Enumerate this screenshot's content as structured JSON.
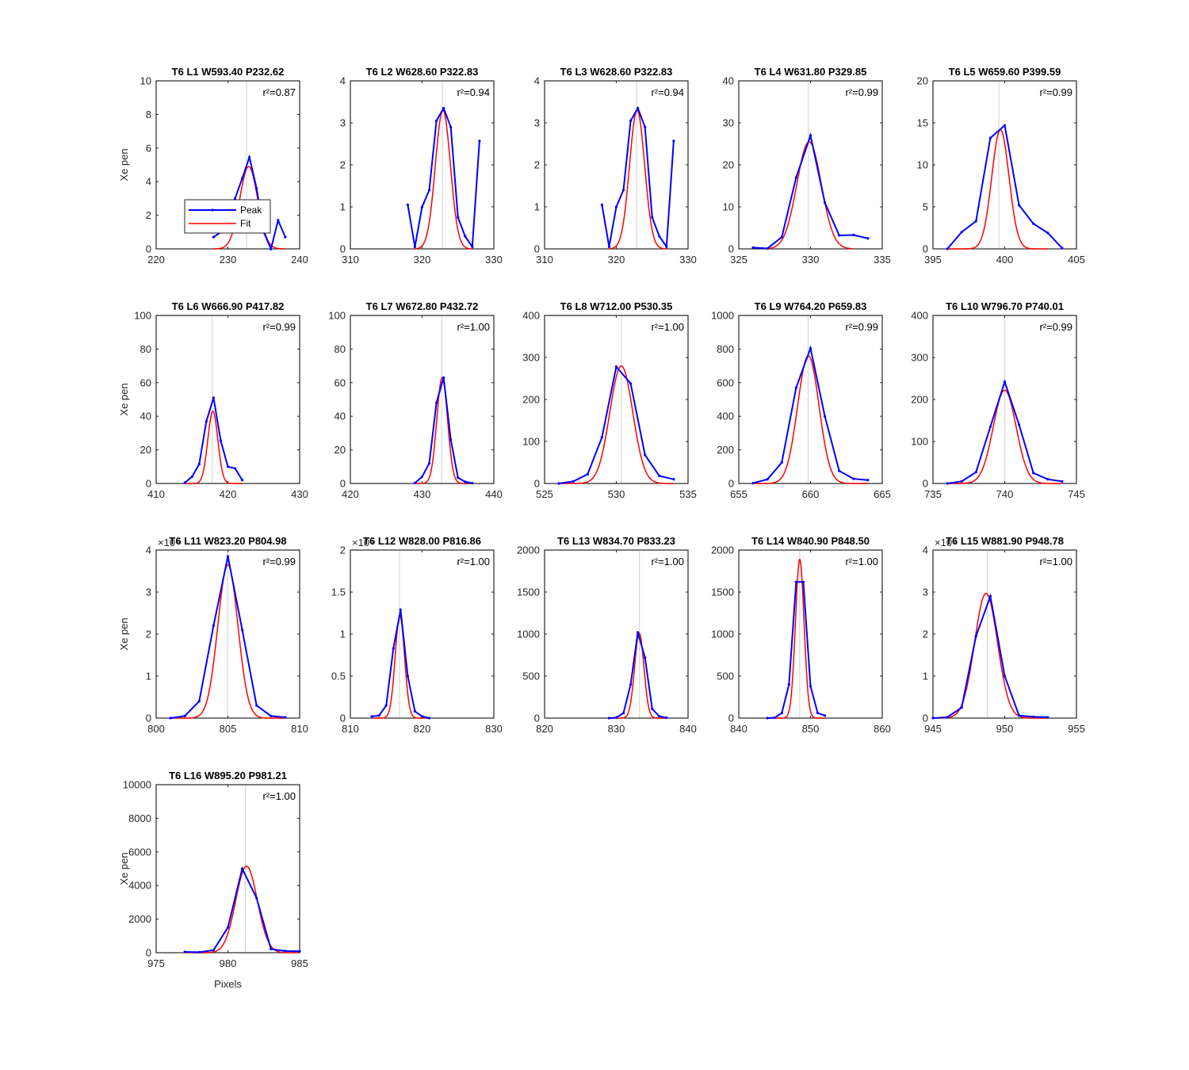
{
  "colors": {
    "peak": "#0000ff",
    "fit": "#ff0000",
    "grid": "#d0d0d0",
    "axis": "#262626"
  },
  "legend": {
    "entries": [
      "Peak",
      "Fit"
    ],
    "panel": 0
  },
  "xlabel_text": "Pixels",
  "chart_data": [
    {
      "type": "line",
      "title": "T6 L1 W593.40 P232.62",
      "ylabel": "Xe pen",
      "xlabel": "",
      "xlim": [
        220,
        240
      ],
      "ylim": [
        0,
        10
      ],
      "xticks": [
        220,
        230,
        240
      ],
      "yticks": [
        0,
        2,
        4,
        6,
        8,
        10
      ],
      "multiplier": "",
      "r2": "r²=0.87",
      "center": 232.62,
      "grid": true,
      "series": [
        {
          "name": "Peak",
          "x": [
            228,
            229,
            230,
            231,
            232,
            233,
            234,
            235,
            236,
            237,
            238
          ],
          "y": [
            0.7,
            1.0,
            2.0,
            3.0,
            4.2,
            5.45,
            3.6,
            1.0,
            0.0,
            1.7,
            0.7
          ]
        },
        {
          "name": "Fit",
          "amp": 4.9,
          "mu": 232.9,
          "sigma": 1.25,
          "from": 228,
          "to": 238
        }
      ]
    },
    {
      "type": "line",
      "title": "T6 L2 W628.60 P322.83",
      "ylabel": "",
      "xlabel": "",
      "xlim": [
        310,
        330
      ],
      "ylim": [
        0,
        4
      ],
      "xticks": [
        310,
        320,
        330
      ],
      "yticks": [
        0,
        1,
        2,
        3,
        4
      ],
      "multiplier": "",
      "r2": "r²=0.94",
      "center": 322.83,
      "grid": true,
      "series": [
        {
          "name": "Peak",
          "x": [
            318,
            319,
            320,
            321,
            322,
            323,
            324,
            325,
            326,
            327,
            328
          ],
          "y": [
            1.05,
            0.05,
            1.0,
            1.4,
            3.05,
            3.35,
            2.9,
            0.75,
            0.3,
            0.05,
            2.57
          ]
        },
        {
          "name": "Fit",
          "amp": 3.3,
          "mu": 322.9,
          "sigma": 1.05,
          "from": 319,
          "to": 327
        }
      ]
    },
    {
      "type": "line",
      "title": "T6 L3 W628.60 P322.83",
      "ylabel": "",
      "xlabel": "",
      "xlim": [
        310,
        330
      ],
      "ylim": [
        0,
        4
      ],
      "xticks": [
        310,
        320,
        330
      ],
      "yticks": [
        0,
        1,
        2,
        3,
        4
      ],
      "multiplier": "",
      "r2": "r²=0.94",
      "center": 322.83,
      "grid": true,
      "series": [
        {
          "name": "Peak",
          "x": [
            318,
            319,
            320,
            321,
            322,
            323,
            324,
            325,
            326,
            327,
            328
          ],
          "y": [
            1.05,
            0.05,
            1.0,
            1.4,
            3.05,
            3.35,
            2.9,
            0.75,
            0.3,
            0.05,
            2.57
          ]
        },
        {
          "name": "Fit",
          "amp": 3.3,
          "mu": 322.9,
          "sigma": 1.05,
          "from": 319,
          "to": 327
        }
      ]
    },
    {
      "type": "line",
      "title": "T6 L4 W631.80 P329.85",
      "ylabel": "",
      "xlabel": "",
      "xlim": [
        325,
        335
      ],
      "ylim": [
        0,
        40
      ],
      "xticks": [
        325,
        330,
        335
      ],
      "yticks": [
        0,
        10,
        20,
        30,
        40
      ],
      "multiplier": "",
      "r2": "r²=0.99",
      "center": 329.85,
      "grid": true,
      "series": [
        {
          "name": "Peak",
          "x": [
            326,
            327,
            328,
            329,
            330,
            331,
            332,
            333,
            334
          ],
          "y": [
            0.3,
            0.1,
            2.8,
            17.0,
            27.0,
            11.0,
            3.2,
            3.3,
            2.5
          ]
        },
        {
          "name": "Fit",
          "amp": 25.5,
          "mu": 329.9,
          "sigma": 0.85,
          "from": 327,
          "to": 333
        }
      ]
    },
    {
      "type": "line",
      "title": "T6 L5 W659.60 P399.59",
      "ylabel": "",
      "xlabel": "",
      "xlim": [
        395,
        405
      ],
      "ylim": [
        0,
        20
      ],
      "xticks": [
        395,
        400,
        405
      ],
      "yticks": [
        0,
        5,
        10,
        15,
        20
      ],
      "multiplier": "",
      "r2": "r²=0.99",
      "center": 399.59,
      "grid": true,
      "series": [
        {
          "name": "Peak",
          "x": [
            396,
            397,
            398,
            399,
            400,
            401,
            402,
            403,
            404
          ],
          "y": [
            0.0,
            2.0,
            3.3,
            13.2,
            14.7,
            5.2,
            3.0,
            1.9,
            0.1
          ]
        },
        {
          "name": "Fit",
          "amp": 14.2,
          "mu": 399.7,
          "sigma": 0.6,
          "from": 396,
          "to": 403
        }
      ]
    },
    {
      "type": "line",
      "title": "T6 L6 W666.90 P417.82",
      "ylabel": "Xe pen",
      "xlabel": "",
      "xlim": [
        410,
        430
      ],
      "ylim": [
        0,
        100
      ],
      "xticks": [
        410,
        420,
        430
      ],
      "yticks": [
        0,
        20,
        40,
        60,
        80,
        100
      ],
      "multiplier": "",
      "r2": "r²=0.99",
      "center": 417.82,
      "grid": true,
      "series": [
        {
          "name": "Peak",
          "x": [
            414,
            415,
            416,
            417,
            418,
            419,
            420,
            421,
            422
          ],
          "y": [
            0.5,
            4.0,
            11.5,
            37.0,
            51.0,
            25.5,
            10.0,
            9.0,
            2.0
          ]
        },
        {
          "name": "Fit",
          "amp": 43.0,
          "mu": 417.9,
          "sigma": 0.7,
          "from": 414,
          "to": 422
        }
      ]
    },
    {
      "type": "line",
      "title": "T6 L7 W672.80 P432.72",
      "ylabel": "",
      "xlabel": "",
      "xlim": [
        420,
        440
      ],
      "ylim": [
        0,
        100
      ],
      "xticks": [
        420,
        430,
        440
      ],
      "yticks": [
        0,
        20,
        40,
        60,
        80,
        100
      ],
      "multiplier": "",
      "r2": "r²=1.00",
      "center": 432.72,
      "grid": true,
      "series": [
        {
          "name": "Peak",
          "x": [
            429,
            430,
            431,
            432,
            433,
            434,
            435,
            436,
            437
          ],
          "y": [
            0.3,
            4.0,
            12.0,
            48.0,
            63.0,
            26.0,
            3.5,
            1.0,
            0.2
          ]
        },
        {
          "name": "Fit",
          "amp": 63.0,
          "mu": 432.8,
          "sigma": 0.75,
          "from": 429,
          "to": 437
        }
      ]
    },
    {
      "type": "line",
      "title": "T6 L8 W712.00 P530.35",
      "ylabel": "",
      "xlabel": "",
      "xlim": [
        525,
        535
      ],
      "ylim": [
        0,
        400
      ],
      "xticks": [
        525,
        530,
        535
      ],
      "yticks": [
        0,
        100,
        200,
        300,
        400
      ],
      "multiplier": "",
      "r2": "r²=1.00",
      "center": 530.35,
      "grid": true,
      "series": [
        {
          "name": "Peak",
          "x": [
            526,
            527,
            528,
            529,
            530,
            531,
            532,
            533,
            534
          ],
          "y": [
            0,
            5,
            22,
            110,
            278,
            238,
            68,
            18,
            10
          ]
        },
        {
          "name": "Fit",
          "amp": 280.0,
          "mu": 530.35,
          "sigma": 0.8,
          "from": 526,
          "to": 534
        }
      ]
    },
    {
      "type": "line",
      "title": "T6 L9 W764.20 P659.83",
      "ylabel": "",
      "xlabel": "",
      "xlim": [
        655,
        665
      ],
      "ylim": [
        0,
        1000
      ],
      "xticks": [
        655,
        660,
        665
      ],
      "yticks": [
        0,
        200,
        400,
        600,
        800,
        1000
      ],
      "multiplier": "",
      "r2": "r²=0.99",
      "center": 659.83,
      "grid": true,
      "series": [
        {
          "name": "Peak",
          "x": [
            656,
            657,
            658,
            659,
            660,
            661,
            662,
            663,
            664
          ],
          "y": [
            2,
            25,
            125,
            570,
            805,
            400,
            75,
            28,
            20
          ]
        },
        {
          "name": "Fit",
          "amp": 760.0,
          "mu": 659.85,
          "sigma": 0.75,
          "from": 656,
          "to": 664
        }
      ]
    },
    {
      "type": "line",
      "title": "T6 L10 W796.70 P740.01",
      "ylabel": "",
      "xlabel": "",
      "xlim": [
        735,
        745
      ],
      "ylim": [
        0,
        400
      ],
      "xticks": [
        735,
        740,
        745
      ],
      "yticks": [
        0,
        100,
        200,
        300,
        400
      ],
      "multiplier": "",
      "r2": "r²=0.99",
      "center": 740.01,
      "grid": true,
      "series": [
        {
          "name": "Peak",
          "x": [
            736,
            737,
            738,
            739,
            740,
            741,
            742,
            743,
            744
          ],
          "y": [
            0,
            5,
            27,
            135,
            242,
            140,
            25,
            10,
            5
          ]
        },
        {
          "name": "Fit",
          "amp": 222.0,
          "mu": 740.0,
          "sigma": 0.8,
          "from": 736,
          "to": 744
        }
      ]
    },
    {
      "type": "line",
      "title": "T6 L11 W823.20 P804.98",
      "ylabel": "Xe pen",
      "xlabel": "",
      "xlim": [
        800,
        810
      ],
      "ylim": [
        0,
        4
      ],
      "xticks": [
        800,
        805,
        810
      ],
      "yticks": [
        0,
        1,
        2,
        3,
        4
      ],
      "multiplier": "×10⁴",
      "r2": "r²=0.99",
      "center": 804.98,
      "grid": true,
      "series": [
        {
          "name": "Peak",
          "x": [
            801,
            802,
            803,
            804,
            805,
            806,
            807,
            808,
            809
          ],
          "y": [
            0.0,
            0.05,
            0.4,
            2.2,
            3.85,
            2.1,
            0.3,
            0.05,
            0.02
          ]
        },
        {
          "name": "Fit",
          "amp": 3.65,
          "mu": 805.0,
          "sigma": 0.7,
          "from": 801,
          "to": 809
        }
      ]
    },
    {
      "type": "line",
      "title": "T6 L12 W828.00 P816.86",
      "ylabel": "",
      "xlabel": "",
      "xlim": [
        810,
        830
      ],
      "ylim": [
        0,
        2
      ],
      "xticks": [
        810,
        820,
        830
      ],
      "yticks": [
        0,
        0.5,
        1,
        1.5,
        2
      ],
      "multiplier": "×10⁴",
      "r2": "r²=1.00",
      "center": 816.86,
      "grid": true,
      "series": [
        {
          "name": "Peak",
          "x": [
            813,
            814,
            815,
            816,
            817,
            818,
            819,
            820,
            821
          ],
          "y": [
            0.02,
            0.03,
            0.15,
            0.83,
            1.29,
            0.5,
            0.08,
            0.02,
            0.0
          ]
        },
        {
          "name": "Fit",
          "amp": 1.22,
          "mu": 816.9,
          "sigma": 0.65,
          "from": 813,
          "to": 821
        }
      ]
    },
    {
      "type": "line",
      "title": "T6 L13 W834.70 P833.23",
      "ylabel": "",
      "xlabel": "",
      "xlim": [
        820,
        840
      ],
      "ylim": [
        0,
        2000
      ],
      "xticks": [
        820,
        830,
        840
      ],
      "yticks": [
        0,
        500,
        1000,
        1500,
        2000
      ],
      "multiplier": "",
      "r2": "r²=1.00",
      "center": 833.23,
      "grid": true,
      "series": [
        {
          "name": "Peak",
          "x": [
            829,
            830,
            831,
            832,
            833,
            834,
            835,
            836,
            837
          ],
          "y": [
            0,
            5,
            60,
            400,
            1020,
            720,
            110,
            20,
            5
          ]
        },
        {
          "name": "Fit",
          "amp": 1010.0,
          "mu": 833.2,
          "sigma": 0.65,
          "from": 829,
          "to": 837
        }
      ]
    },
    {
      "type": "line",
      "title": "T6 L14 W840.90 P848.50",
      "ylabel": "",
      "xlabel": "",
      "xlim": [
        840,
        860
      ],
      "ylim": [
        0,
        2000
      ],
      "xticks": [
        840,
        850,
        860
      ],
      "yticks": [
        0,
        500,
        1000,
        1500,
        2000
      ],
      "multiplier": "",
      "r2": "r²=1.00",
      "center": 848.5,
      "grid": true,
      "series": [
        {
          "name": "Peak",
          "x": [
            844,
            845,
            846,
            847,
            848,
            849,
            850,
            851,
            852
          ],
          "y": [
            0,
            5,
            60,
            400,
            1620,
            1620,
            380,
            60,
            30
          ]
        },
        {
          "name": "Fit",
          "amp": 1890.0,
          "mu": 848.5,
          "sigma": 0.6,
          "from": 844,
          "to": 852
        }
      ]
    },
    {
      "type": "line",
      "title": "T6 L15 W881.90 P948.78",
      "ylabel": "",
      "xlabel": "",
      "xlim": [
        945,
        955
      ],
      "ylim": [
        0,
        4
      ],
      "xticks": [
        945,
        950,
        955
      ],
      "yticks": [
        0,
        1,
        2,
        3,
        4
      ],
      "multiplier": "×10⁴",
      "r2": "r²=1.00",
      "center": 948.78,
      "grid": true,
      "series": [
        {
          "name": "Peak",
          "x": [
            945,
            946,
            947,
            948,
            949,
            950,
            951,
            952,
            953
          ],
          "y": [
            0.0,
            0.02,
            0.25,
            1.95,
            2.9,
            1.0,
            0.06,
            0.03,
            0.02
          ]
        },
        {
          "name": "Fit",
          "amp": 2.97,
          "mu": 948.7,
          "sigma": 0.8,
          "from": 945,
          "to": 953
        }
      ]
    },
    {
      "type": "line",
      "title": "T6 L16 W895.20 P981.21",
      "ylabel": "Xe pen",
      "xlabel": "Pixels",
      "xlim": [
        975,
        985
      ],
      "ylim": [
        0,
        10000
      ],
      "xticks": [
        975,
        980,
        985
      ],
      "yticks": [
        0,
        2000,
        4000,
        6000,
        8000,
        10000
      ],
      "multiplier": "",
      "r2": "r²=1.00",
      "center": 981.21,
      "grid": true,
      "series": [
        {
          "name": "Peak",
          "x": [
            977,
            978,
            979,
            980,
            981,
            982,
            983,
            984,
            985
          ],
          "y": [
            50,
            30,
            150,
            1500,
            5000,
            3250,
            220,
            100,
            80
          ]
        },
        {
          "name": "Fit",
          "amp": 5150.0,
          "mu": 981.3,
          "sigma": 0.75,
          "from": 977,
          "to": 985
        }
      ]
    }
  ]
}
